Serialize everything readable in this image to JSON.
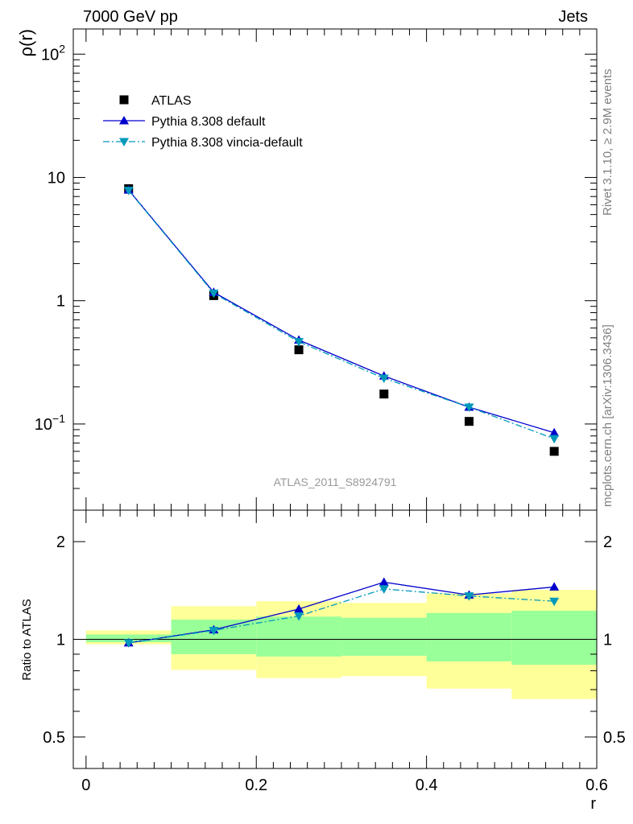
{
  "header": {
    "left": "7000 GeV pp",
    "right": "Jets"
  },
  "side_labels": {
    "rivet": "Rivet 3.1.10, ≥ 2.9M events",
    "mcplots": "mcplots.cern.ch [arXiv:1306.3436]"
  },
  "chart_data": [
    {
      "type": "scatter",
      "panel": "main",
      "ylabel": "ρ(r)",
      "yscale": "log",
      "ylim": [
        0.02,
        160
      ],
      "xlim": [
        -0.015,
        0.6
      ],
      "ytick_labels": [
        "10⁻¹",
        "1",
        "10",
        "10²"
      ],
      "analysis_label": "ATLAS_2011_S8924791",
      "legend_position": "top-left",
      "x": [
        0.05,
        0.15,
        0.25,
        0.35,
        0.45,
        0.55
      ],
      "series": [
        {
          "name": "ATLAS",
          "marker": "square",
          "color": "#000000",
          "values": [
            8.1,
            1.1,
            0.4,
            0.175,
            0.105,
            0.06
          ]
        },
        {
          "name": "Pythia 8.308 default",
          "marker": "triangle-up",
          "line": "solid",
          "color": "#0000cc",
          "values": [
            7.9,
            1.17,
            0.48,
            0.245,
            0.137,
            0.085
          ]
        },
        {
          "name": "Pythia 8.308 vincia-default",
          "marker": "triangle-down",
          "line": "dash-dot",
          "color": "#0099bb",
          "values": [
            7.85,
            1.15,
            0.465,
            0.235,
            0.137,
            0.076
          ]
        }
      ]
    },
    {
      "type": "scatter",
      "panel": "ratio",
      "xlabel": "r",
      "ylabel": "Ratio to ATLAS",
      "yscale": "log",
      "ylim": [
        0.4,
        2.5
      ],
      "xlim": [
        -0.015,
        0.6
      ],
      "xticks": [
        0,
        0.2,
        0.4,
        0.6
      ],
      "xtick_labels": [
        "0",
        "0.2",
        "0.4",
        "0.6"
      ],
      "yticks": [
        0.5,
        1,
        2
      ],
      "ytick_labels": [
        "0.5",
        "1",
        "2"
      ],
      "reference_line": 1,
      "x": [
        0.05,
        0.15,
        0.25,
        0.35,
        0.45,
        0.55
      ],
      "bins": [
        [
          0,
          0.1
        ],
        [
          0.1,
          0.2
        ],
        [
          0.2,
          0.3
        ],
        [
          0.3,
          0.4
        ],
        [
          0.4,
          0.5
        ],
        [
          0.5,
          0.6
        ]
      ],
      "band_inner": [
        [
          0.98,
          1.035
        ],
        [
          0.9,
          1.15
        ],
        [
          0.885,
          1.175
        ],
        [
          0.89,
          1.165
        ],
        [
          0.855,
          1.205
        ],
        [
          0.835,
          1.225
        ]
      ],
      "band_outer": [
        [
          0.965,
          1.065
        ],
        [
          0.805,
          1.265
        ],
        [
          0.76,
          1.31
        ],
        [
          0.77,
          1.295
        ],
        [
          0.705,
          1.385
        ],
        [
          0.655,
          1.42
        ]
      ],
      "series": [
        {
          "name": "Pythia 8.308 default",
          "marker": "triangle-up",
          "line": "solid",
          "color": "#0000cc",
          "values": [
            0.975,
            1.07,
            1.24,
            1.5,
            1.37,
            1.45
          ],
          "errors": [
            0.012,
            0.02,
            0.025,
            0.035,
            0.03,
            0.03
          ]
        },
        {
          "name": "Pythia 8.308 vincia-default",
          "marker": "triangle-down",
          "line": "dash-dot",
          "color": "#0099bb",
          "values": [
            0.975,
            1.065,
            1.18,
            1.43,
            1.36,
            1.31
          ],
          "errors": [
            0.012,
            0.02,
            0.03,
            0.04,
            0.035,
            0.03
          ]
        }
      ]
    }
  ]
}
